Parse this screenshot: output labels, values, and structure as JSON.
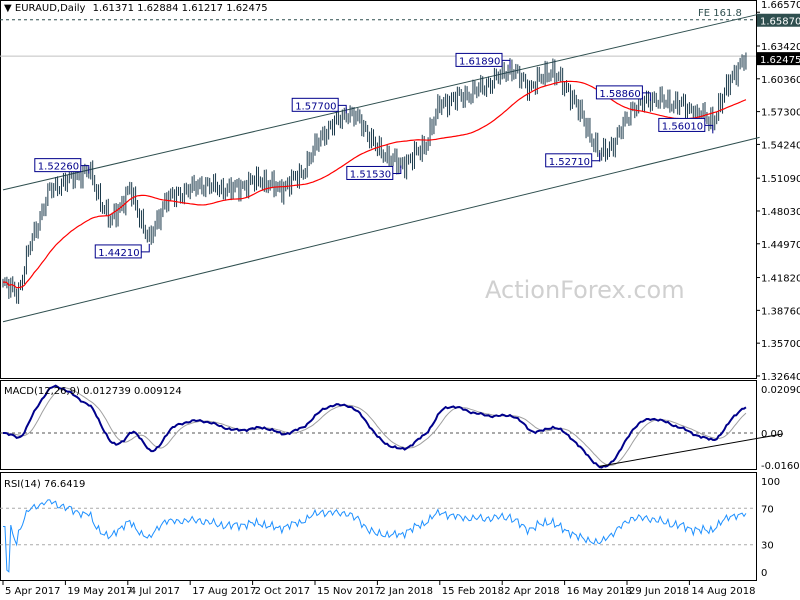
{
  "header": {
    "symbol": "EURAUD,Daily",
    "ohlc": "1.61371 1.62884 1.61217 1.62475"
  },
  "watermark": "ActionForex.com",
  "colors": {
    "bars": "#1b3a4b",
    "ma": "#ff0000",
    "macd": "#00008b",
    "signal": "#a0a0a0",
    "rsi": "#1e90ff",
    "label_border": "#00008b",
    "price_tag_bg": "#000000",
    "fe_tag_bg": "#2f4f4f"
  },
  "chart_data": [
    {
      "type": "ohlc",
      "title": "EURAUD,Daily",
      "y_ticks": [
        "1.66570",
        "1.63420",
        "1.60360",
        "1.57300",
        "1.54240",
        "1.51090",
        "1.48030",
        "1.44970",
        "1.41820",
        "1.38760",
        "1.35700",
        "1.32640"
      ],
      "ylim": [
        1.3264,
        1.6657
      ],
      "x_ticks": [
        "5 Apr 2017",
        "19 May 2017",
        "4 Jul 2017",
        "17 Aug 2017",
        "2 Oct 2017",
        "15 Nov 2017",
        "2 Jan 2018",
        "15 Feb 2018",
        "2 Apr 2018",
        "16 May 2018",
        "29 Jun 2018",
        "14 Aug 2018"
      ],
      "x_tick_bar_step": 32,
      "close_keypoints": [
        [
          0,
          1.411
        ],
        [
          8,
          1.405
        ],
        [
          14,
          1.45
        ],
        [
          24,
          1.5
        ],
        [
          34,
          1.51
        ],
        [
          44,
          1.518
        ],
        [
          50,
          1.49
        ],
        [
          55,
          1.47
        ],
        [
          65,
          1.5
        ],
        [
          75,
          1.452
        ],
        [
          83,
          1.49
        ],
        [
          101,
          1.505
        ],
        [
          117,
          1.5
        ],
        [
          132,
          1.51
        ],
        [
          142,
          1.5
        ],
        [
          153,
          1.515
        ],
        [
          163,
          1.55
        ],
        [
          176,
          1.572
        ],
        [
          183,
          1.565
        ],
        [
          191,
          1.54
        ],
        [
          204,
          1.522
        ],
        [
          216,
          1.54
        ],
        [
          224,
          1.58
        ],
        [
          240,
          1.59
        ],
        [
          250,
          1.6
        ],
        [
          260,
          1.614
        ],
        [
          270,
          1.595
        ],
        [
          281,
          1.612
        ],
        [
          291,
          1.59
        ],
        [
          299,
          1.56
        ],
        [
          306,
          1.532
        ],
        [
          314,
          1.545
        ],
        [
          322,
          1.575
        ],
        [
          332,
          1.585
        ],
        [
          347,
          1.58
        ],
        [
          358,
          1.568
        ],
        [
          364,
          1.565
        ],
        [
          368,
          1.58
        ],
        [
          373,
          1.605
        ],
        [
          378,
          1.615
        ],
        [
          381,
          1.62475
        ]
      ],
      "last_price": "1.62475",
      "moving_average": {
        "period": 55,
        "color": "#ff0000"
      },
      "annotations": [
        {
          "text": "1.52260",
          "bar": 44,
          "price": 1.5226
        },
        {
          "text": "1.44210",
          "bar": 75,
          "price": 1.4421
        },
        {
          "text": "1.57700",
          "bar": 176,
          "price": 1.577
        },
        {
          "text": "1.51530",
          "bar": 204,
          "price": 1.5153
        },
        {
          "text": "1.61890",
          "bar": 260,
          "price": 1.6189
        },
        {
          "text": "1.52710",
          "bar": 306,
          "price": 1.5271
        },
        {
          "text": "1.58860",
          "bar": 332,
          "price": 1.5886
        },
        {
          "text": "1.56010",
          "bar": 364,
          "price": 1.5601
        }
      ],
      "channel": {
        "upper": [
          [
            0,
            1.5
          ],
          [
            388,
            1.664
          ]
        ],
        "lower": [
          [
            0,
            1.377
          ],
          [
            388,
            1.549
          ]
        ]
      },
      "fibonacci": {
        "label": "FE 161.8",
        "price": 1.6587,
        "price_tag": "1.65870"
      }
    },
    {
      "type": "line",
      "title": "MACD(12,26,9) 0.012739 0.009124",
      "y_ticks": [
        "0.020904",
        "0.00",
        "-0.016023"
      ],
      "ylim": [
        -0.016023,
        0.020904
      ],
      "series": [
        {
          "name": "MACD"
        },
        {
          "name": "Signal"
        }
      ],
      "trendline": [
        [
          306,
          -0.0158
        ],
        [
          400,
          -0.0004
        ]
      ]
    },
    {
      "type": "line",
      "title": "RSI(14) 76.6419",
      "y_ticks": [
        "100",
        "70",
        "30",
        "0"
      ],
      "ylim": [
        0,
        100
      ],
      "levels": [
        70,
        30
      ]
    }
  ]
}
